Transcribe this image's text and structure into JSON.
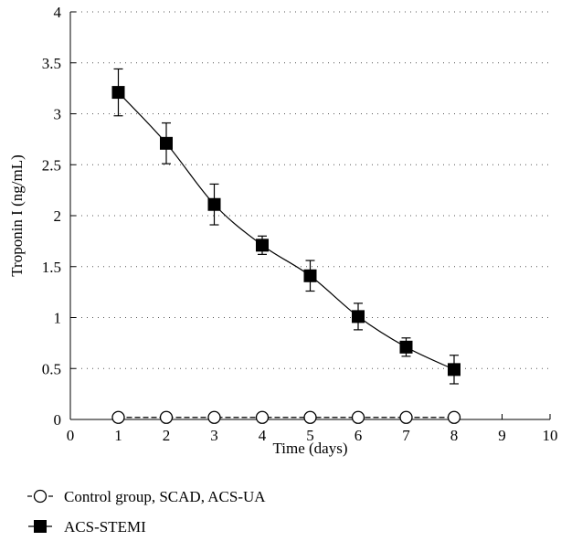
{
  "chart_data": {
    "type": "line",
    "xlabel": "Time (days)",
    "ylabel": "Troponin I (ng/mL)",
    "xlim": [
      0,
      10
    ],
    "ylim": [
      0,
      4
    ],
    "xticks": [
      "0",
      "1",
      "2",
      "3",
      "4",
      "5",
      "6",
      "7",
      "8",
      "9",
      "10"
    ],
    "yticks": [
      "0",
      "0.5",
      "1",
      "1.5",
      "2",
      "2.5",
      "3",
      "3.5",
      "4"
    ],
    "grid": "horizontal dotted",
    "legend_position": "bottom-left",
    "series": [
      {
        "name": "Control group, SCAD, ACS-UA",
        "marker": "open-circle",
        "line_style": "dashed",
        "color": "#000000",
        "x": [
          1,
          2,
          3,
          4,
          5,
          6,
          7,
          8
        ],
        "y": [
          0.02,
          0.02,
          0.02,
          0.02,
          0.02,
          0.02,
          0.02,
          0.02
        ]
      },
      {
        "name": "ACS-STEMI",
        "marker": "filled-square",
        "line_style": "solid",
        "color": "#000000",
        "x": [
          1,
          2,
          3,
          4,
          5,
          6,
          7,
          8
        ],
        "y": [
          3.21,
          2.71,
          2.11,
          1.71,
          1.41,
          1.01,
          0.71,
          0.49
        ],
        "error": [
          0.23,
          0.2,
          0.2,
          0.09,
          0.15,
          0.13,
          0.09,
          0.14
        ]
      }
    ]
  }
}
